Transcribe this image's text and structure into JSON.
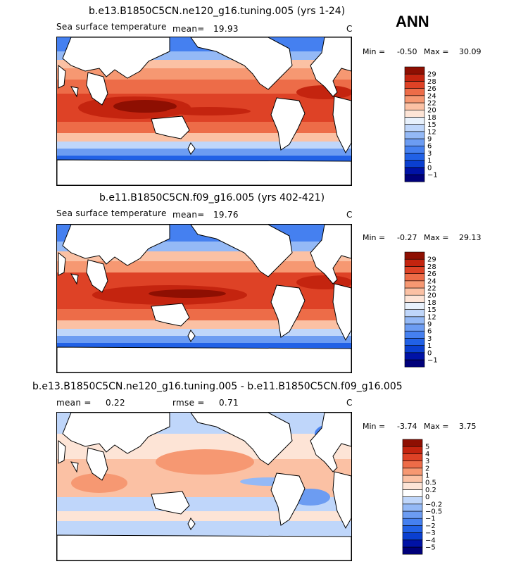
{
  "season": "ANN",
  "panels": [
    {
      "title": "b.e13.B1850C5CN.ne120_g16.tuning.005 (yrs 1-24)",
      "variable": "Sea surface temperature",
      "mean_label": "mean=",
      "mean_value": "19.93",
      "units": "C",
      "min_label": "Min =",
      "min_value": "-0.50",
      "max_label": "Max =",
      "max_value": "30.09"
    },
    {
      "title": "b.e11.B1850C5CN.f09_g16.005 (yrs 402-421)",
      "variable": "Sea surface temperature",
      "mean_label": "mean=",
      "mean_value": "19.76",
      "units": "C",
      "min_label": "Min =",
      "min_value": "-0.27",
      "max_label": "Max =",
      "max_value": "29.13"
    },
    {
      "title": "b.e13.B1850C5CN.ne120_g16.tuning.005 - b.e11.B1850C5CN.f09_g16.005",
      "mean_label": "mean =",
      "mean_value": "0.22",
      "rmse_label": "rmse =",
      "rmse_value": "0.71",
      "units": "C",
      "min_label": "Min =",
      "min_value": "-3.74",
      "max_label": "Max =",
      "max_value": "3.75"
    }
  ],
  "chart_data": [
    {
      "type": "heatmap",
      "title": "b.e13.B1850C5CN.ne120_g16.tuning.005 (yrs 1-24)",
      "variable": "Sea surface temperature",
      "units": "C",
      "mean": 19.93,
      "min": -0.5,
      "max": 30.09,
      "colorbar_levels": [
        -1,
        0,
        1,
        3,
        6,
        9,
        12,
        15,
        18,
        20,
        22,
        24,
        26,
        28,
        29
      ],
      "colorbar_colors": [
        "#00007a",
        "#0012a6",
        "#0a3fd0",
        "#2161e6",
        "#4580f0",
        "#6c9cf2",
        "#94b9f6",
        "#bfd6fa",
        "#e8f1fc",
        "#fde4d6",
        "#fbc1a4",
        "#f69872",
        "#ed6c48",
        "#de4226",
        "#c4240f",
        "#8e0f02"
      ],
      "map_land_color": "#ffffff"
    },
    {
      "type": "heatmap",
      "title": "b.e11.B1850C5CN.f09_g16.005 (yrs 402-421)",
      "variable": "Sea surface temperature",
      "units": "C",
      "mean": 19.76,
      "min": -0.27,
      "max": 29.13,
      "colorbar_levels": [
        -1,
        0,
        1,
        3,
        6,
        9,
        12,
        15,
        18,
        20,
        22,
        24,
        26,
        28,
        29
      ],
      "colorbar_colors": [
        "#00007a",
        "#0012a6",
        "#0a3fd0",
        "#2161e6",
        "#4580f0",
        "#6c9cf2",
        "#94b9f6",
        "#bfd6fa",
        "#e8f1fc",
        "#fde4d6",
        "#fbc1a4",
        "#f69872",
        "#ed6c48",
        "#de4226",
        "#c4240f",
        "#8e0f02"
      ],
      "map_land_color": "#ffffff"
    },
    {
      "type": "heatmap",
      "title": "b.e13.B1850C5CN.ne120_g16.tuning.005 - b.e11.B1850C5CN.f09_g16.005",
      "units": "C",
      "mean": 0.22,
      "rmse": 0.71,
      "min": -3.74,
      "max": 3.75,
      "colorbar_levels": [
        -5,
        -4,
        -3,
        -2,
        -1,
        -0.5,
        -0.2,
        0,
        0.2,
        0.5,
        1,
        2,
        3,
        4,
        5
      ],
      "colorbar_colors": [
        "#00007a",
        "#0012a6",
        "#0a3fd0",
        "#2161e6",
        "#4580f0",
        "#6c9cf2",
        "#94b9f6",
        "#bfd6fa",
        "#ffffff",
        "#fde4d6",
        "#fbc1a4",
        "#f69872",
        "#ed6c48",
        "#de4226",
        "#c4240f",
        "#8e0f02"
      ],
      "map_land_color": "#ffffff"
    }
  ]
}
